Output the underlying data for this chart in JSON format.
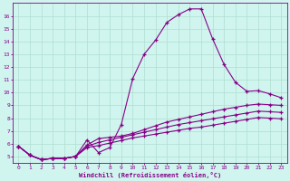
{
  "xlabel": "Windchill (Refroidissement éolien,°C)",
  "bg_color": "#cff5ee",
  "grid_color": "#b0ddd0",
  "line_color": "#880088",
  "spine_color": "#880088",
  "xlim": [
    -0.5,
    23.5
  ],
  "ylim": [
    4.5,
    17.0
  ],
  "xticks": [
    0,
    1,
    2,
    3,
    4,
    5,
    6,
    7,
    8,
    9,
    10,
    11,
    12,
    13,
    14,
    15,
    16,
    17,
    18,
    19,
    20,
    21,
    22,
    23
  ],
  "yticks": [
    5,
    6,
    7,
    8,
    9,
    10,
    11,
    12,
    13,
    14,
    15,
    16
  ],
  "curve1_x": [
    0,
    1,
    2,
    3,
    4,
    5,
    6,
    7,
    8,
    9,
    10,
    11,
    12,
    13,
    14,
    15,
    16,
    17,
    18,
    19,
    20,
    21,
    22,
    23
  ],
  "curve1_y": [
    5.8,
    5.1,
    4.75,
    4.85,
    4.85,
    5.0,
    6.3,
    5.3,
    5.7,
    7.5,
    11.1,
    13.0,
    14.1,
    15.5,
    16.1,
    16.55,
    16.55,
    14.2,
    12.2,
    10.8,
    10.1,
    10.15,
    9.9,
    9.6
  ],
  "curve2_x": [
    0,
    1,
    2,
    3,
    4,
    5,
    6,
    7,
    8,
    9,
    10,
    11,
    12,
    13,
    14,
    15,
    16,
    17,
    18,
    19,
    20,
    21,
    22,
    23
  ],
  "curve2_y": [
    5.8,
    5.1,
    4.75,
    4.85,
    4.85,
    5.0,
    5.9,
    6.4,
    6.5,
    6.6,
    6.8,
    7.1,
    7.4,
    7.7,
    7.9,
    8.1,
    8.3,
    8.5,
    8.7,
    8.85,
    9.0,
    9.1,
    9.05,
    9.0
  ],
  "curve3_x": [
    0,
    1,
    2,
    3,
    4,
    5,
    6,
    7,
    8,
    9,
    10,
    11,
    12,
    13,
    14,
    15,
    16,
    17,
    18,
    19,
    20,
    21,
    22,
    23
  ],
  "curve3_y": [
    5.8,
    5.1,
    4.75,
    4.85,
    4.85,
    5.0,
    5.8,
    6.1,
    6.3,
    6.5,
    6.7,
    6.9,
    7.1,
    7.3,
    7.5,
    7.65,
    7.8,
    7.95,
    8.1,
    8.25,
    8.4,
    8.55,
    8.5,
    8.45
  ],
  "curve4_x": [
    0,
    1,
    2,
    3,
    4,
    5,
    6,
    7,
    8,
    9,
    10,
    11,
    12,
    13,
    14,
    15,
    16,
    17,
    18,
    19,
    20,
    21,
    22,
    23
  ],
  "curve4_y": [
    5.8,
    5.1,
    4.75,
    4.85,
    4.85,
    5.0,
    5.7,
    5.85,
    6.05,
    6.25,
    6.45,
    6.6,
    6.75,
    6.9,
    7.05,
    7.2,
    7.3,
    7.45,
    7.6,
    7.75,
    7.9,
    8.05,
    8.0,
    7.95
  ]
}
